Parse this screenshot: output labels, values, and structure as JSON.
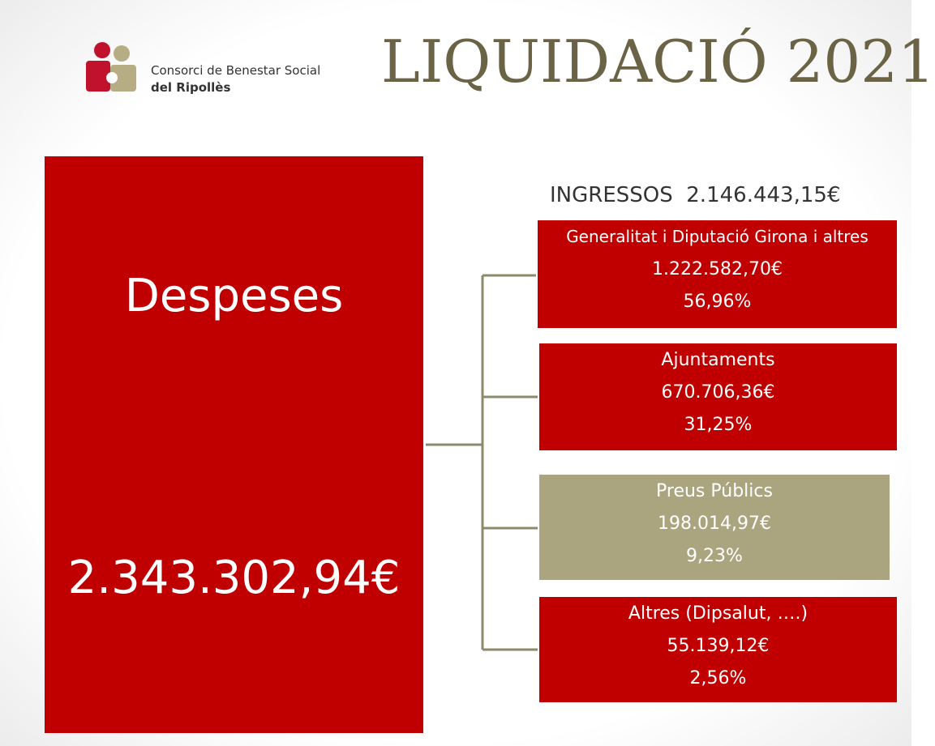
{
  "header": {
    "logo_line1": "Consorci de Benestar Social",
    "logo_line2": "del Ripollès",
    "title": "LIQUIDACIÓ 2021"
  },
  "expenses": {
    "label": "Despeses",
    "amount": "2.343.302,94€"
  },
  "income": {
    "label": "INGRESSOS",
    "amount": "2.146.443,15€",
    "items": [
      {
        "name": "Generalitat i Diputació Girona i altres",
        "amount": "1.222.582,70€",
        "percent": "56,96%"
      },
      {
        "name": "Ajuntaments",
        "amount": "670.706,36€",
        "percent": "31,25%"
      },
      {
        "name": "Preus Públics",
        "amount": "198.014,97€",
        "percent": "9,23%"
      },
      {
        "name": "Altres (Dipsalut, ….)",
        "amount": "55.139,12€",
        "percent": "2,56%"
      }
    ]
  }
}
